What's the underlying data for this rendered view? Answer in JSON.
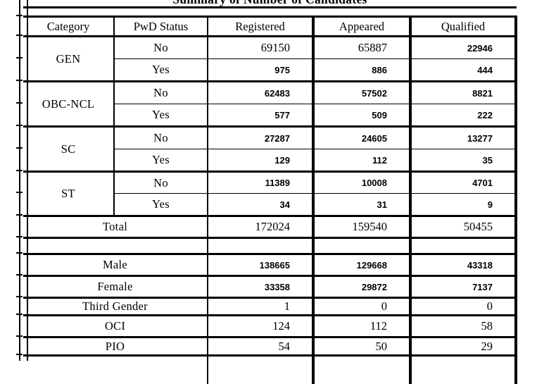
{
  "title": "Summary of Number of Candidates",
  "table": {
    "columns": [
      "Category",
      "PwD Status",
      "Registered",
      "Appeared",
      "Qualified"
    ],
    "groups": [
      {
        "category": "GEN",
        "rows": [
          {
            "pwd_status": "No",
            "registered": "69150",
            "appeared": "65887",
            "qualified": "22946"
          },
          {
            "pwd_status": "Yes",
            "registered": "975",
            "appeared": "886",
            "qualified": "444"
          }
        ]
      },
      {
        "category": "OBC-NCL",
        "rows": [
          {
            "pwd_status": "No",
            "registered": "62483",
            "appeared": "57502",
            "qualified": "8821"
          },
          {
            "pwd_status": "Yes",
            "registered": "577",
            "appeared": "509",
            "qualified": "222"
          }
        ]
      },
      {
        "category": "SC",
        "rows": [
          {
            "pwd_status": "No",
            "registered": "27287",
            "appeared": "24605",
            "qualified": "13277"
          },
          {
            "pwd_status": "Yes",
            "registered": "129",
            "appeared": "112",
            "qualified": "35"
          }
        ]
      },
      {
        "category": "ST",
        "rows": [
          {
            "pwd_status": "No",
            "registered": "11389",
            "appeared": "10008",
            "qualified": "4701"
          },
          {
            "pwd_status": "Yes",
            "registered": "34",
            "appeared": "31",
            "qualified": "9"
          }
        ]
      }
    ],
    "total_row": {
      "label": "Total",
      "registered": "172024",
      "appeared": "159540",
      "qualified": "50455"
    },
    "summary_rows": [
      {
        "label": "Male",
        "registered": "138665",
        "appeared": "129668",
        "qualified": "43318"
      },
      {
        "label": "Female",
        "registered": "33358",
        "appeared": "29872",
        "qualified": "7137"
      },
      {
        "label": "Third Gender",
        "registered": "1",
        "appeared": "0",
        "qualified": "0"
      },
      {
        "label": "OCI",
        "registered": "124",
        "appeared": "112",
        "qualified": "58"
      },
      {
        "label": "PIO",
        "registered": "54",
        "appeared": "50",
        "qualified": "29"
      }
    ]
  }
}
